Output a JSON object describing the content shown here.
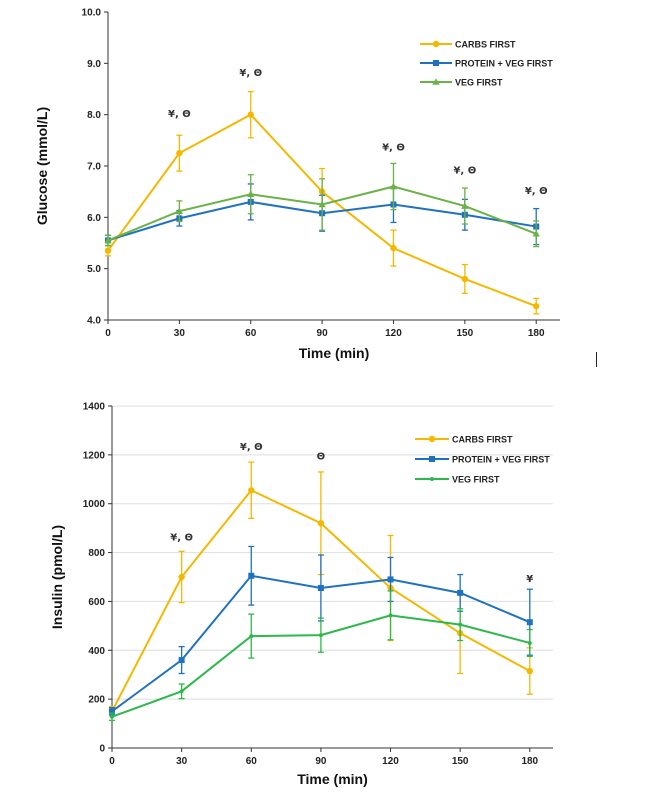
{
  "chart_data": [
    {
      "type": "line",
      "id": "glucose",
      "xlabel": "Time (min)",
      "ylabel": "Glucose (mmol/L)",
      "x": [
        0,
        30,
        60,
        90,
        120,
        150,
        180
      ],
      "xlim": [
        0,
        190
      ],
      "ylim": [
        4.0,
        10.0
      ],
      "yticks": [
        4.0,
        5.0,
        6.0,
        7.0,
        8.0,
        9.0,
        10.0
      ],
      "ytick_labels": [
        "4.0",
        "5.0",
        "6.0",
        "7.0",
        "8.0",
        "9.0",
        "10.0"
      ],
      "xtick_labels": [
        "0",
        "30",
        "60",
        "90",
        "120",
        "150",
        "180"
      ],
      "series": [
        {
          "name": "CARBS FIRST",
          "color": "#F5B800",
          "marker": "circle",
          "values": [
            5.35,
            7.25,
            8.0,
            6.5,
            5.4,
            4.8,
            4.27
          ],
          "errors": [
            0.1,
            0.35,
            0.45,
            0.45,
            0.35,
            0.28,
            0.15
          ]
        },
        {
          "name": "PROTEIN + VEG FIRST",
          "color": "#1F72C0",
          "marker": "square",
          "values": [
            5.55,
            5.98,
            6.3,
            6.08,
            6.25,
            6.05,
            5.82
          ],
          "errors": [
            0.1,
            0.15,
            0.35,
            0.35,
            0.35,
            0.3,
            0.35
          ]
        },
        {
          "name": "VEG FIRST",
          "color": "#6BB246",
          "marker": "triangle",
          "values": [
            5.55,
            6.12,
            6.45,
            6.25,
            6.6,
            6.22,
            5.68
          ],
          "errors": [
            0.1,
            0.2,
            0.38,
            0.5,
            0.45,
            0.35,
            0.25
          ]
        }
      ],
      "annotations": [
        {
          "x": 30,
          "y": 7.95,
          "text": "¥, Θ"
        },
        {
          "x": 60,
          "y": 8.75,
          "text": "¥, Θ"
        },
        {
          "x": 120,
          "y": 7.3,
          "text": "¥, Θ"
        },
        {
          "x": 150,
          "y": 6.85,
          "text": "¥, Θ"
        },
        {
          "x": 180,
          "y": 6.45,
          "text": "¥, Θ"
        }
      ],
      "legend_position": "top-right"
    },
    {
      "type": "line",
      "id": "insulin",
      "xlabel": "Time (min)",
      "ylabel": "Insulin (pmol/L)",
      "x": [
        0,
        30,
        60,
        90,
        120,
        150,
        180
      ],
      "xlim": [
        0,
        190
      ],
      "ylim": [
        0,
        1400
      ],
      "yticks": [
        0,
        200,
        400,
        600,
        800,
        1000,
        1200,
        1400
      ],
      "ytick_labels": [
        "0",
        "200",
        "400",
        "600",
        "800",
        "1000",
        "1200",
        "1400"
      ],
      "xtick_labels": [
        "0",
        "30",
        "60",
        "90",
        "120",
        "150",
        "180"
      ],
      "series": [
        {
          "name": "CARBS FIRST",
          "color": "#F5B800",
          "marker": "circle",
          "values": [
            150,
            700,
            1055,
            920,
            655,
            470,
            315
          ],
          "errors": [
            20,
            105,
            115,
            210,
            215,
            165,
            95
          ]
        },
        {
          "name": "PROTEIN + VEG FIRST",
          "color": "#1F72C0",
          "marker": "square",
          "values": [
            150,
            360,
            705,
            655,
            690,
            635,
            515
          ],
          "errors": [
            15,
            55,
            120,
            135,
            90,
            75,
            135
          ]
        },
        {
          "name": "VEG FIRST",
          "color": "#2DB84B",
          "marker": "dot",
          "values": [
            128,
            232,
            458,
            462,
            543,
            505,
            430
          ],
          "errors": [
            15,
            30,
            90,
            70,
            100,
            65,
            55
          ]
        }
      ],
      "annotations": [
        {
          "x": 30,
          "y": 850,
          "text": "¥, Θ"
        },
        {
          "x": 60,
          "y": 1220,
          "text": "¥, Θ"
        },
        {
          "x": 90,
          "y": 1180,
          "text": "Θ"
        },
        {
          "x": 180,
          "y": 680,
          "text": "¥"
        }
      ],
      "legend_position": "top-right"
    }
  ]
}
